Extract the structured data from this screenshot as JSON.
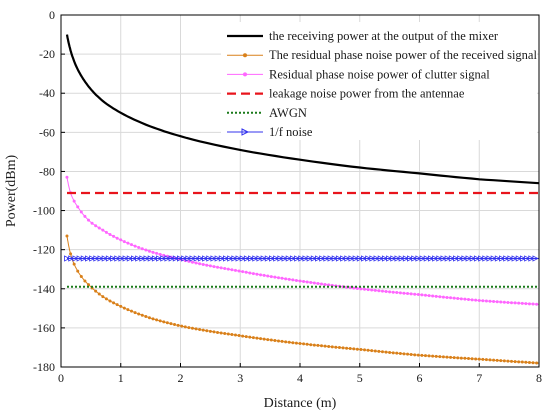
{
  "chart_data": {
    "type": "line",
    "title": "",
    "xlabel": "Distance (m)",
    "ylabel": "Power(dBm)",
    "xlim": [
      0,
      8
    ],
    "ylim": [
      -180,
      0
    ],
    "xticks": [
      0,
      1,
      2,
      3,
      4,
      5,
      6,
      7,
      8
    ],
    "yticks": [
      -180,
      -160,
      -140,
      -120,
      -100,
      -80,
      -60,
      -40,
      -20,
      0
    ],
    "grid": true,
    "legend_position": "top-right",
    "series": [
      {
        "name": "the receiving power at the output of the mixer",
        "color": "#000000",
        "style": "solid",
        "marker": "none",
        "x": [
          0.1,
          0.15,
          0.2,
          0.3,
          0.4,
          0.5,
          0.7,
          1.0,
          1.5,
          2.0,
          3.0,
          4.0,
          5.0,
          6.0,
          7.0,
          8.0
        ],
        "y": [
          -10,
          -17,
          -22,
          -29,
          -34,
          -38,
          -44,
          -50,
          -57,
          -62,
          -69,
          -74,
          -78,
          -81,
          -84,
          -86
        ]
      },
      {
        "name": "The residual phase noise power of the received signal",
        "color": "#d9801a",
        "style": "solid",
        "marker": "dot",
        "x": [
          0.1,
          0.15,
          0.2,
          0.3,
          0.4,
          0.5,
          0.7,
          1.0,
          1.5,
          2.0,
          3.0,
          4.0,
          5.0,
          6.0,
          7.0,
          8.0
        ],
        "y": [
          -113,
          -121,
          -126,
          -132,
          -136,
          -139,
          -144,
          -149,
          -155,
          -159,
          -164,
          -168,
          -171,
          -174,
          -176,
          -178
        ]
      },
      {
        "name": "Residual phase noise power of clutter signal",
        "color": "#ff66ff",
        "style": "solid",
        "marker": "dot",
        "x": [
          0.1,
          0.15,
          0.2,
          0.3,
          0.4,
          0.5,
          0.7,
          1.0,
          1.5,
          2.0,
          3.0,
          4.0,
          5.0,
          6.0,
          7.0,
          8.0
        ],
        "y": [
          -83,
          -90,
          -94,
          -99,
          -103,
          -106,
          -110,
          -115,
          -121,
          -125,
          -131,
          -136,
          -140,
          -143,
          -146,
          -148
        ]
      },
      {
        "name": "leakage noise power from the antennae",
        "color": "#e8141c",
        "style": "dashed",
        "marker": "none",
        "x": [
          0.1,
          8.0
        ],
        "y": [
          -91,
          -91
        ]
      },
      {
        "name": "AWGN",
        "color": "#1a7a1a",
        "style": "dotted",
        "marker": "none",
        "x": [
          0.1,
          8.0
        ],
        "y": [
          -139,
          -139
        ]
      },
      {
        "name": "1/f noise",
        "color": "#3333ee",
        "style": "solid",
        "marker": "triangle",
        "x": [
          0.1,
          8.0
        ],
        "y": [
          -124.5,
          -124.5
        ]
      }
    ]
  }
}
